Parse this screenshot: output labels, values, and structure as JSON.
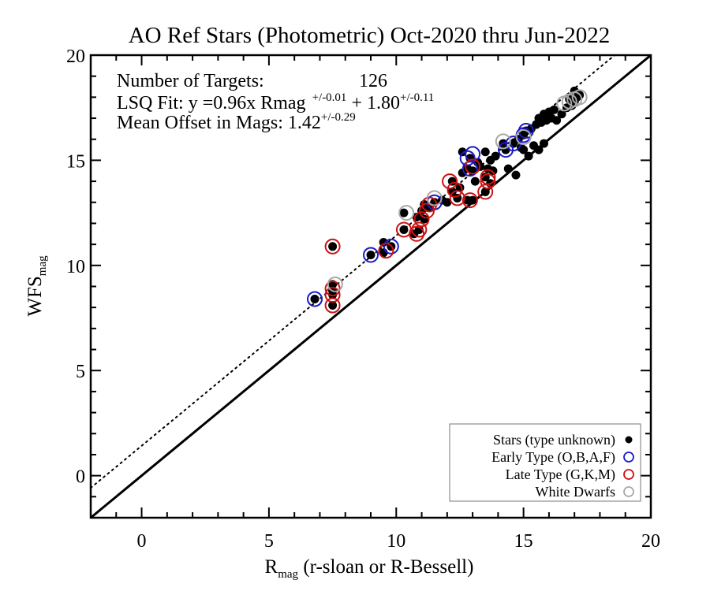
{
  "chart_data": {
    "type": "scatter",
    "title": "AO Ref Stars (Photometric) Oct-2020 thru Jun-2022",
    "xlabel": {
      "main": "R",
      "sub": "mag",
      "rest": " (r-sloan or R-Bessell)"
    },
    "ylabel": {
      "main": "WFS",
      "sub": "mag"
    },
    "xlim": [
      -2,
      20
    ],
    "ylim": [
      -2,
      20
    ],
    "major_ticks": [
      0,
      5,
      10,
      15,
      20
    ],
    "x_tick_labels": [
      "0",
      "5",
      "10",
      "15",
      "20"
    ],
    "y_tick_labels": [
      "0",
      "5",
      "10",
      "15",
      "20"
    ],
    "grid": false,
    "stats": {
      "targets_label": "Number of Targets:",
      "targets_value": "126",
      "fit_prefix": "LSQ Fit: y =0.96x Rmag",
      "fit_slope_err": "+/-0.01",
      "fit_mid": " + 1.80",
      "fit_intercept_err": "+/-0.11",
      "offset_prefix": "Mean Offset in Mags: 1.42",
      "offset_err": "+/-0.29"
    },
    "lines": [
      {
        "name": "one-to-one",
        "style": "solid",
        "slope": 1.0,
        "intercept": 0.0
      },
      {
        "name": "offset",
        "style": "dotted",
        "slope": 1.0,
        "intercept": 1.42
      }
    ],
    "legend": {
      "position": "bottom-right",
      "entries": [
        {
          "label": "Stars (type unknown)",
          "marker": "filled",
          "color": "#000000"
        },
        {
          "label": "Early Type (O,B,A,F)",
          "marker": "ring",
          "color": "#1a1acc"
        },
        {
          "label": "Late Type (G,K,M)",
          "marker": "ring",
          "color": "#cc1111"
        },
        {
          "label": "White Dwarfs",
          "marker": "ring",
          "color": "#a8a8a8"
        }
      ]
    },
    "series": [
      {
        "name": "Stars (type unknown)",
        "color": "#000000",
        "marker": "filled",
        "points": [
          [
            6.8,
            8.4
          ],
          [
            7.5,
            8.1
          ],
          [
            7.5,
            8.6
          ],
          [
            7.5,
            8.8
          ],
          [
            7.5,
            9.1
          ],
          [
            7.5,
            10.9
          ],
          [
            9.0,
            10.5
          ],
          [
            9.5,
            10.6
          ],
          [
            9.5,
            11.1
          ],
          [
            9.8,
            10.9
          ],
          [
            10.3,
            11.7
          ],
          [
            10.3,
            12.5
          ],
          [
            10.7,
            11.5
          ],
          [
            10.8,
            12.3
          ],
          [
            10.9,
            11.7
          ],
          [
            11.0,
            12.6
          ],
          [
            11.1,
            12.2
          ],
          [
            11.1,
            12.9
          ],
          [
            11.3,
            12.8
          ],
          [
            11.5,
            13.0
          ],
          [
            11.8,
            13.1
          ],
          [
            12.0,
            13.0
          ],
          [
            12.2,
            13.5
          ],
          [
            12.2,
            14.0
          ],
          [
            12.4,
            13.2
          ],
          [
            12.5,
            13.7
          ],
          [
            12.6,
            14.4
          ],
          [
            12.6,
            15.4
          ],
          [
            12.8,
            13.1
          ],
          [
            12.8,
            14.6
          ],
          [
            12.9,
            15.1
          ],
          [
            13.0,
            13.1
          ],
          [
            13.0,
            14.5
          ],
          [
            13.1,
            14.0
          ],
          [
            13.2,
            14.9
          ],
          [
            13.3,
            14.7
          ],
          [
            13.5,
            13.5
          ],
          [
            13.5,
            14.2
          ],
          [
            13.5,
            15.4
          ],
          [
            13.6,
            14.6
          ],
          [
            13.7,
            13.9
          ],
          [
            13.7,
            15.0
          ],
          [
            13.8,
            14.5
          ],
          [
            13.9,
            15.2
          ],
          [
            14.2,
            15.8
          ],
          [
            14.3,
            15.5
          ],
          [
            14.4,
            14.6
          ],
          [
            14.6,
            15.8
          ],
          [
            14.7,
            14.3
          ],
          [
            14.8,
            16.0
          ],
          [
            14.9,
            15.6
          ],
          [
            15.0,
            15.5
          ],
          [
            15.0,
            16.2
          ],
          [
            15.1,
            16.4
          ],
          [
            15.2,
            15.2
          ],
          [
            15.3,
            16.5
          ],
          [
            15.4,
            15.7
          ],
          [
            15.5,
            16.7
          ],
          [
            15.6,
            15.5
          ],
          [
            15.6,
            17.0
          ],
          [
            15.7,
            16.8
          ],
          [
            15.8,
            15.8
          ],
          [
            15.8,
            17.2
          ],
          [
            15.9,
            16.9
          ],
          [
            16.0,
            17.3
          ],
          [
            16.1,
            17.0
          ],
          [
            16.2,
            17.4
          ],
          [
            16.3,
            16.9
          ],
          [
            16.5,
            17.2
          ],
          [
            16.7,
            17.5
          ],
          [
            16.8,
            17.9
          ],
          [
            16.9,
            17.6
          ],
          [
            17.0,
            17.8
          ],
          [
            17.0,
            18.3
          ],
          [
            17.1,
            18.0
          ],
          [
            17.2,
            18.1
          ]
        ]
      },
      {
        "name": "Early Type (O,B,A,F)",
        "color": "#1a1acc",
        "marker": "ring",
        "points": [
          [
            6.8,
            8.4
          ],
          [
            9.0,
            10.5
          ],
          [
            9.8,
            10.9
          ],
          [
            11.5,
            13.0
          ],
          [
            12.8,
            15.1
          ],
          [
            12.9,
            14.6
          ],
          [
            13.0,
            15.3
          ],
          [
            14.3,
            15.5
          ],
          [
            14.6,
            15.8
          ],
          [
            15.0,
            16.2
          ],
          [
            15.1,
            16.4
          ]
        ]
      },
      {
        "name": "Late Type (G,K,M)",
        "color": "#cc1111",
        "marker": "ring",
        "points": [
          [
            7.5,
            8.1
          ],
          [
            7.5,
            8.6
          ],
          [
            7.5,
            8.9
          ],
          [
            7.5,
            10.9
          ],
          [
            9.6,
            10.7
          ],
          [
            10.3,
            11.7
          ],
          [
            10.8,
            11.5
          ],
          [
            10.9,
            11.7
          ],
          [
            11.0,
            12.2
          ],
          [
            11.2,
            12.6
          ],
          [
            11.3,
            12.9
          ],
          [
            12.1,
            14.0
          ],
          [
            12.3,
            13.6
          ],
          [
            12.4,
            13.2
          ],
          [
            12.9,
            13.1
          ],
          [
            13.0,
            14.7
          ],
          [
            13.5,
            13.5
          ],
          [
            13.6,
            14.0
          ],
          [
            13.6,
            14.2
          ]
        ]
      },
      {
        "name": "White Dwarfs",
        "color": "#a8a8a8",
        "marker": "ring",
        "points": [
          [
            7.6,
            9.1
          ],
          [
            10.4,
            12.5
          ],
          [
            11.5,
            13.2
          ],
          [
            14.2,
            15.9
          ],
          [
            15.0,
            16.1
          ],
          [
            16.6,
            17.7
          ],
          [
            16.8,
            17.8
          ],
          [
            17.0,
            17.9
          ],
          [
            17.2,
            18.0
          ]
        ]
      }
    ]
  }
}
